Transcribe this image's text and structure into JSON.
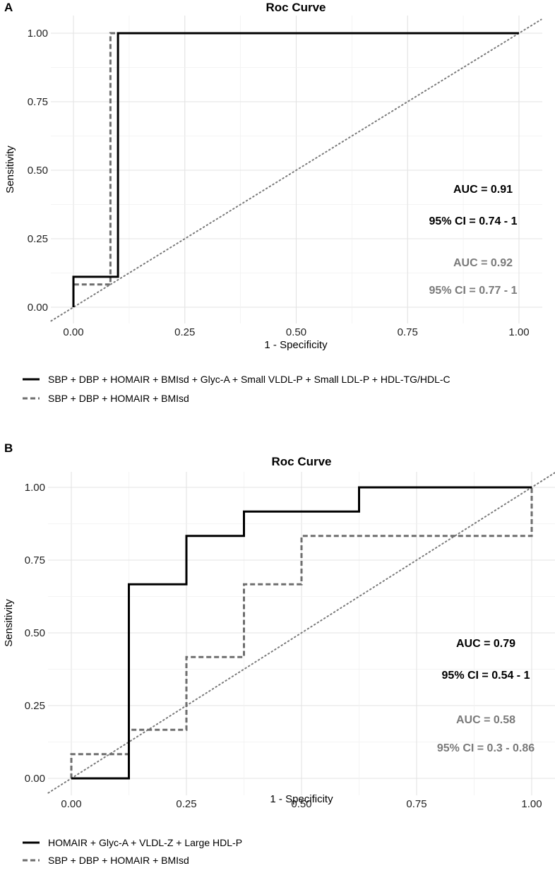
{
  "chart_data": [
    {
      "panel": "A",
      "type": "line",
      "title": "Roc Curve",
      "xlabel": "1 - Specificity",
      "ylabel": "Sensitivity",
      "xlim": [
        0,
        1
      ],
      "ylim": [
        0,
        1
      ],
      "xticks": [
        "0.00",
        "0.25",
        "0.50",
        "0.75",
        "1.00"
      ],
      "yticks": [
        "0.00",
        "0.25",
        "0.50",
        "0.75",
        "1.00"
      ],
      "grid": true,
      "diagonal": "dotted",
      "series": [
        {
          "name": "SBP + DBP + HOMAIR + BMIsd + Glyc-A + Small VLDL-P + Small LDL-P + HDL-TG/HDL-C",
          "style": "solid",
          "color": "#000000",
          "x": [
            0,
            0,
            0.1,
            0.1,
            1
          ],
          "y": [
            0,
            0.111,
            0.111,
            1,
            1
          ]
        },
        {
          "name": "SBP + DBP + HOMAIR + BMIsd",
          "style": "dashed",
          "color": "#6e6e6e",
          "x": [
            0,
            0,
            0.083,
            0.083,
            1
          ],
          "y": [
            0,
            0.083,
            0.083,
            1,
            1
          ]
        }
      ],
      "annotations": [
        {
          "text": "AUC = 0.91",
          "color": "#000000"
        },
        {
          "text": "95% CI = 0.74 - 1",
          "color": "#000000"
        },
        {
          "text": "AUC = 0.92",
          "color": "#7a7a7a"
        },
        {
          "text": "95% CI = 0.77 - 1",
          "color": "#7a7a7a"
        }
      ]
    },
    {
      "panel": "B",
      "type": "line",
      "title": "Roc Curve",
      "xlabel": "1 - Specificity",
      "ylabel": "Sensitivity",
      "xlim": [
        0,
        1
      ],
      "ylim": [
        0,
        1
      ],
      "xticks": [
        "0.00",
        "0.25",
        "0.50",
        "0.75",
        "1.00"
      ],
      "yticks": [
        "0.00",
        "0.25",
        "0.50",
        "0.75",
        "1.00"
      ],
      "grid": true,
      "diagonal": "dotted",
      "series": [
        {
          "name": "HOMAIR + Glyc-A + VLDL-Z + Large HDL-P",
          "style": "solid",
          "color": "#000000",
          "x": [
            0,
            0.125,
            0.125,
            0.25,
            0.25,
            0.375,
            0.375,
            0.625,
            0.625,
            1
          ],
          "y": [
            0,
            0,
            0.667,
            0.667,
            0.833,
            0.833,
            0.917,
            0.917,
            1,
            1
          ]
        },
        {
          "name": "SBP + DBP + HOMAIR + BMIsd",
          "style": "dashed",
          "color": "#6e6e6e",
          "x": [
            0,
            0,
            0.125,
            0.125,
            0.25,
            0.25,
            0.375,
            0.375,
            0.5,
            0.5,
            1,
            1
          ],
          "y": [
            0,
            0.083,
            0.083,
            0.167,
            0.167,
            0.417,
            0.417,
            0.667,
            0.667,
            0.833,
            0.833,
            1
          ]
        }
      ],
      "annotations": [
        {
          "text": "AUC = 0.79",
          "color": "#000000"
        },
        {
          "text": "95% CI = 0.54 - 1",
          "color": "#000000"
        },
        {
          "text": "AUC = 0.58",
          "color": "#7a7a7a"
        },
        {
          "text": "95% CI = 0.3 - 0.86",
          "color": "#7a7a7a"
        }
      ]
    }
  ]
}
